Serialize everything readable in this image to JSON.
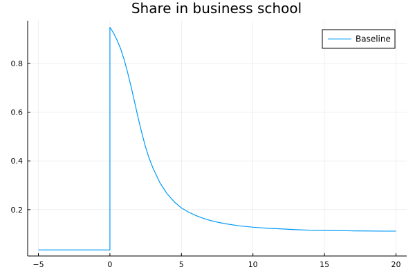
{
  "chart_data": {
    "type": "line",
    "title": "Share in business school",
    "xlabel": "",
    "ylabel": "",
    "xlim": [
      -5.75,
      20.75
    ],
    "ylim": [
      0.01,
      0.975
    ],
    "x_ticks": [
      -5,
      0,
      5,
      10,
      15,
      20
    ],
    "x_tick_labels": [
      "−5",
      "0",
      "5",
      "10",
      "15",
      "20"
    ],
    "y_ticks": [
      0.2,
      0.4,
      0.6,
      0.8
    ],
    "y_tick_labels": [
      "0.2",
      "0.4",
      "0.6",
      "0.8"
    ],
    "grid": true,
    "legend_position": "top-right",
    "series": [
      {
        "name": "Baseline",
        "color": "#009AFA",
        "x": [
          -5,
          -2.5,
          0,
          0,
          0.25,
          0.5,
          0.75,
          1,
          1.25,
          1.5,
          1.75,
          2,
          2.25,
          2.5,
          2.75,
          3,
          3.5,
          4,
          4.5,
          5,
          5.5,
          6,
          6.5,
          7,
          7.5,
          8,
          9,
          10,
          11,
          12,
          13,
          14,
          15,
          16,
          17,
          18,
          19,
          20
        ],
        "y": [
          0.035,
          0.035,
          0.035,
          0.948,
          0.925,
          0.895,
          0.86,
          0.815,
          0.76,
          0.7,
          0.635,
          0.57,
          0.51,
          0.455,
          0.41,
          0.372,
          0.31,
          0.265,
          0.232,
          0.207,
          0.19,
          0.176,
          0.165,
          0.156,
          0.149,
          0.143,
          0.134,
          0.128,
          0.124,
          0.121,
          0.118,
          0.116,
          0.115,
          0.114,
          0.113,
          0.1125,
          0.112,
          0.112
        ]
      }
    ]
  }
}
